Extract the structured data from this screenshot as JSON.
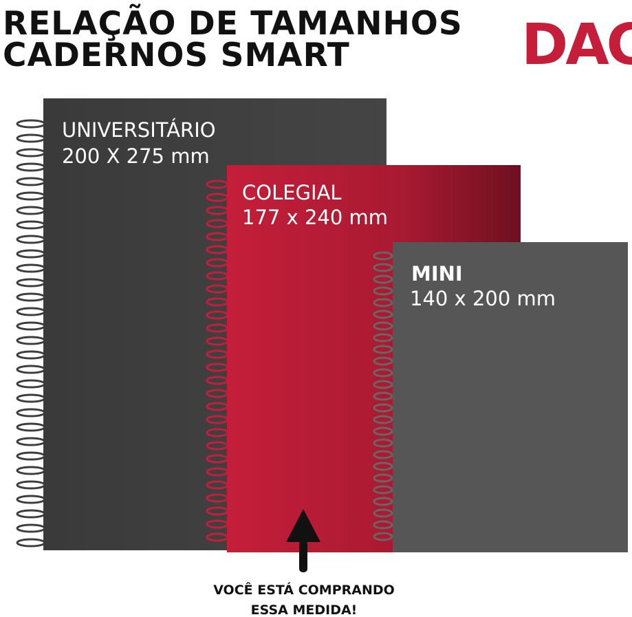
{
  "header": {
    "title_lines": [
      "RELAÇÃO DE TAMANHOS",
      "CADERNOS SMART"
    ],
    "logo": "DAC"
  },
  "notebooks": [
    {
      "name": "UNIVERSITÁRIO",
      "size": "200 X 275 mm"
    },
    {
      "name": "COLEGIAL",
      "size": "177 x 240 mm"
    },
    {
      "name": "MINI",
      "size": "140 x 200 mm"
    }
  ],
  "callout": {
    "lines": [
      "VOCÊ ESTÁ COMPRANDO",
      "ESSA MEDIDA!"
    ]
  }
}
